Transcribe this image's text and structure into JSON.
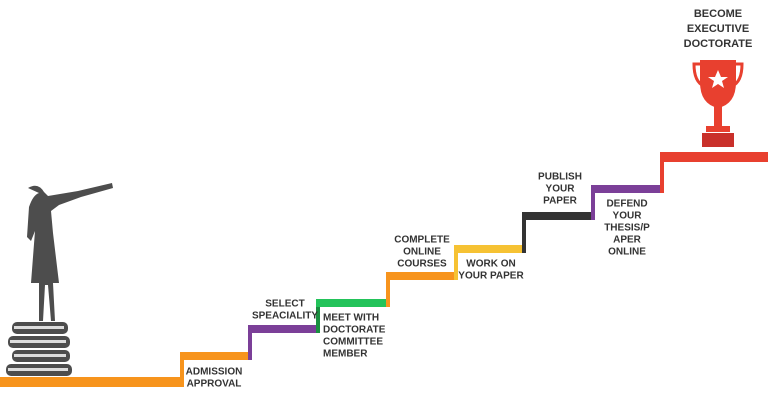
{
  "goal": {
    "lines": [
      "BECOME",
      "EXECUTIVE",
      "DOCTORATE"
    ]
  },
  "steps": [
    {
      "lines": [
        "ADMISSION",
        "APPROVAL"
      ]
    },
    {
      "lines": [
        "SELECT",
        "SPEACIALITY"
      ]
    },
    {
      "lines": [
        "MEET WITH",
        "DOCTORATE",
        "COMMITTEE",
        "MEMBER"
      ]
    },
    {
      "lines": [
        "COMPLETE",
        "ONLINE",
        "COURSES"
      ]
    },
    {
      "lines": [
        "WORK ON",
        "YOUR PAPER"
      ]
    },
    {
      "lines": [
        "PUBLISH",
        "YOUR",
        "PAPER"
      ]
    },
    {
      "lines": [
        "DEFEND",
        "YOUR",
        "THESIS/P",
        "APER",
        "ONLINE"
      ]
    }
  ]
}
